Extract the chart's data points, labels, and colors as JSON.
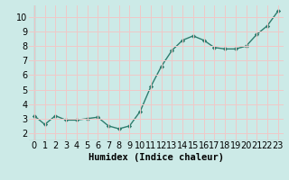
{
  "x": [
    0,
    1,
    2,
    3,
    4,
    5,
    6,
    7,
    8,
    9,
    10,
    11,
    12,
    13,
    14,
    15,
    16,
    17,
    18,
    19,
    20,
    21,
    22,
    23
  ],
  "y": [
    3.2,
    2.6,
    3.2,
    2.9,
    2.9,
    3.0,
    3.1,
    2.5,
    2.3,
    2.5,
    3.5,
    5.2,
    6.6,
    7.7,
    8.4,
    8.7,
    8.4,
    7.9,
    7.8,
    7.8,
    8.0,
    8.8,
    9.4,
    10.4
  ],
  "line_color": "#2e7d6e",
  "marker": "D",
  "marker_size": 2.2,
  "linewidth": 1.0,
  "bg_color": "#cceae7",
  "grid_color": "#f0c8c8",
  "xlabel": "Humidex (Indice chaleur)",
  "xlabel_fontsize": 7.5,
  "tick_fontsize": 7.0,
  "xlim": [
    -0.5,
    23.5
  ],
  "ylim": [
    1.5,
    10.8
  ],
  "yticks": [
    2,
    3,
    4,
    5,
    6,
    7,
    8,
    9,
    10
  ],
  "xticks": [
    0,
    1,
    2,
    3,
    4,
    5,
    6,
    7,
    8,
    9,
    10,
    11,
    12,
    13,
    14,
    15,
    16,
    17,
    18,
    19,
    20,
    21,
    22,
    23
  ]
}
